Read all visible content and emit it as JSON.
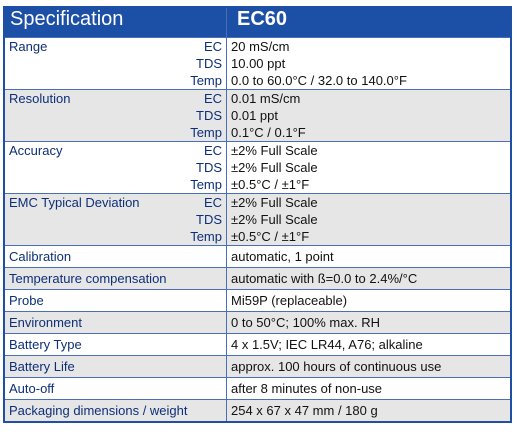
{
  "header": {
    "col1": "Specification",
    "col2": "EC60"
  },
  "multi_rows": [
    {
      "label": "Range",
      "subs": [
        "EC",
        "TDS",
        "Temp"
      ],
      "values": [
        "20 mS/cm",
        "10.00 ppt",
        "0.0 to 60.0°C / 32.0 to 140.0°F"
      ]
    },
    {
      "label": "Resolution",
      "subs": [
        "EC",
        "TDS",
        "Temp"
      ],
      "values": [
        "0.01 mS/cm",
        "0.01 ppt",
        "0.1°C / 0.1°F"
      ]
    },
    {
      "label": "Accuracy",
      "subs": [
        "EC",
        "TDS",
        "Temp"
      ],
      "values": [
        "±2% Full Scale",
        "±2% Full Scale",
        "±0.5°C / ±1°F"
      ]
    },
    {
      "label": "EMC Typical Deviation",
      "subs": [
        "EC",
        "TDS",
        "Temp"
      ],
      "values": [
        "±2% Full Scale",
        "±2% Full Scale",
        "±0.5°C / ±1°F"
      ]
    }
  ],
  "single_rows": [
    {
      "label": "Calibration",
      "value": "automatic, 1 point"
    },
    {
      "label": "Temperature compensation",
      "value": "automatic with ß=0.0 to 2.4%/°C"
    },
    {
      "label": "Probe",
      "value": "Mi59P (replaceable)"
    },
    {
      "label": "Environment",
      "value": "0 to 50°C; 100% max. RH"
    },
    {
      "label": "Battery Type",
      "value": "4 x 1.5V; IEC LR44, A76; alkaline"
    },
    {
      "label": "Battery Life",
      "value": "approx. 100 hours of continuous use"
    },
    {
      "label": "Auto-off",
      "value": "after 8 minutes of non-use"
    },
    {
      "label": "Packaging dimensions / weight",
      "value": "254 x 67 x 47 mm / 180 g"
    }
  ],
  "colors": {
    "header_bg": "#1c4fa6",
    "label_text": "#0d2f78",
    "row_alt": "#e6e6e6",
    "border": "#4b6fb5"
  }
}
